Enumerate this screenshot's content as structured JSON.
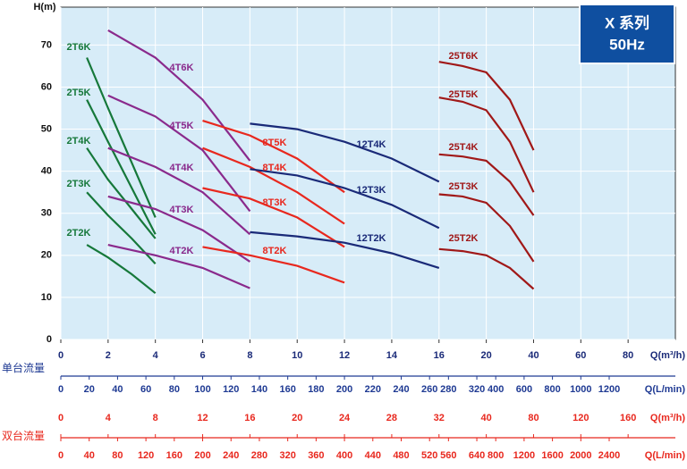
{
  "chart_data": {
    "type": "line",
    "badge": {
      "line1": "X 系列",
      "line2": "50Hz"
    },
    "y_label": "H(m)",
    "x_label": "Q(m³/h)",
    "ylim": [
      0,
      79
    ],
    "yticks": [
      0,
      10,
      20,
      30,
      40,
      50,
      60,
      70
    ],
    "xlim": [
      0,
      100
    ],
    "xticks": [
      0,
      2,
      4,
      6,
      8,
      10,
      12,
      14,
      16,
      20,
      40,
      60,
      80
    ],
    "grid": true,
    "series": [
      {
        "name": "2T6K",
        "color": "#16783a",
        "x": [
          1.1,
          2,
          3,
          4
        ],
        "values": [
          67,
          55,
          42,
          29
        ]
      },
      {
        "name": "2T5K",
        "color": "#16783a",
        "x": [
          1.1,
          2,
          3,
          4
        ],
        "values": [
          57,
          47,
          36,
          25
        ]
      },
      {
        "name": "2T4K",
        "color": "#16783a",
        "x": [
          1.1,
          2,
          3,
          4
        ],
        "values": [
          45.5,
          38,
          31,
          24
        ]
      },
      {
        "name": "2T3K",
        "color": "#16783a",
        "x": [
          1.1,
          2,
          3,
          4
        ],
        "values": [
          35,
          29.5,
          24,
          18
        ]
      },
      {
        "name": "2T2K",
        "color": "#16783a",
        "x": [
          1.1,
          2,
          3,
          4
        ],
        "values": [
          22.5,
          19.5,
          15.5,
          11
        ]
      },
      {
        "name": "4T6K",
        "color": "#8a2a8c",
        "x": [
          2,
          4,
          6,
          8
        ],
        "values": [
          73.5,
          67,
          57,
          42.5
        ]
      },
      {
        "name": "4T5K",
        "color": "#8a2a8c",
        "x": [
          2,
          4,
          6,
          8
        ],
        "values": [
          58,
          53,
          45,
          30.5
        ]
      },
      {
        "name": "4T4K",
        "color": "#8a2a8c",
        "x": [
          2,
          4,
          6,
          8
        ],
        "values": [
          45.5,
          41,
          35,
          25
        ]
      },
      {
        "name": "4T3K",
        "color": "#8a2a8c",
        "x": [
          2,
          4,
          6,
          8
        ],
        "values": [
          34,
          31,
          26,
          18.5
        ]
      },
      {
        "name": "4T2K",
        "color": "#8a2a8c",
        "x": [
          2,
          4,
          6,
          8
        ],
        "values": [
          22.5,
          20,
          17,
          12.2
        ]
      },
      {
        "name": "8T5K",
        "color": "#e8281e",
        "x": [
          6,
          8,
          10,
          12
        ],
        "values": [
          52,
          48.5,
          43,
          35
        ]
      },
      {
        "name": "8T4K",
        "color": "#e8281e",
        "x": [
          6,
          8,
          10,
          12
        ],
        "values": [
          45.5,
          41,
          35,
          27.5
        ]
      },
      {
        "name": "8T3K",
        "color": "#e8281e",
        "x": [
          6,
          8,
          10,
          12
        ],
        "values": [
          36,
          33.5,
          29,
          22
        ]
      },
      {
        "name": "8T2K",
        "color": "#e8281e",
        "x": [
          6,
          8,
          10,
          12
        ],
        "values": [
          22,
          20,
          17.5,
          13.5
        ]
      },
      {
        "name": "12T4K",
        "color": "#1a2a78",
        "x": [
          8,
          10,
          12,
          14,
          16
        ],
        "values": [
          51.3,
          50,
          47,
          43,
          37.5
        ]
      },
      {
        "name": "12T3K",
        "color": "#1a2a78",
        "x": [
          8,
          10,
          12,
          14,
          16
        ],
        "values": [
          40.5,
          39,
          36,
          32,
          26.5
        ]
      },
      {
        "name": "12T2K",
        "color": "#1a2a78",
        "x": [
          8,
          10,
          12,
          14,
          16
        ],
        "values": [
          25.5,
          24.5,
          23,
          20.5,
          17
        ]
      },
      {
        "name": "25T6K",
        "color": "#a01818",
        "x": [
          16,
          18,
          20,
          30,
          40
        ],
        "values": [
          66,
          65,
          63.5,
          57,
          45
        ]
      },
      {
        "name": "25T5K",
        "color": "#a01818",
        "x": [
          16,
          18,
          20,
          30,
          40
        ],
        "values": [
          57.5,
          56.5,
          54.5,
          47,
          35
        ]
      },
      {
        "name": "25T4K",
        "color": "#a01818",
        "x": [
          16,
          18,
          20,
          30,
          40
        ],
        "values": [
          44,
          43.5,
          42.5,
          37.5,
          29.5
        ]
      },
      {
        "name": "25T3K",
        "color": "#a01818",
        "x": [
          16,
          18,
          20,
          30,
          40
        ],
        "values": [
          34.5,
          34,
          32.5,
          27,
          18.5
        ]
      },
      {
        "name": "25T2K",
        "color": "#a01818",
        "x": [
          16,
          18,
          20,
          30,
          40
        ],
        "values": [
          21.5,
          21,
          20,
          17,
          12
        ]
      }
    ],
    "flow_axes": [
      {
        "group": "单台流量",
        "color": "#1f3a93",
        "axes": [
          {
            "title": "Q(L/min)",
            "ticks": [
              0,
              20,
              40,
              60,
              80,
              100,
              120,
              140,
              160,
              180,
              200,
              220,
              240,
              260,
              280,
              320,
              400,
              600,
              800,
              1000,
              1200
            ]
          }
        ]
      },
      {
        "group": "双台流量",
        "color": "#e8281e",
        "axes": [
          {
            "title": "Q(m³/h)",
            "ticks": [
              0,
              4,
              8,
              12,
              16,
              20,
              24,
              28,
              32,
              40,
              80,
              120,
              160
            ]
          },
          {
            "title": "Q(L/min)",
            "ticks": [
              0,
              40,
              80,
              120,
              160,
              200,
              240,
              280,
              320,
              360,
              400,
              440,
              480,
              520,
              560,
              640,
              800,
              1200,
              1600,
              2000,
              2400
            ]
          }
        ]
      }
    ]
  }
}
